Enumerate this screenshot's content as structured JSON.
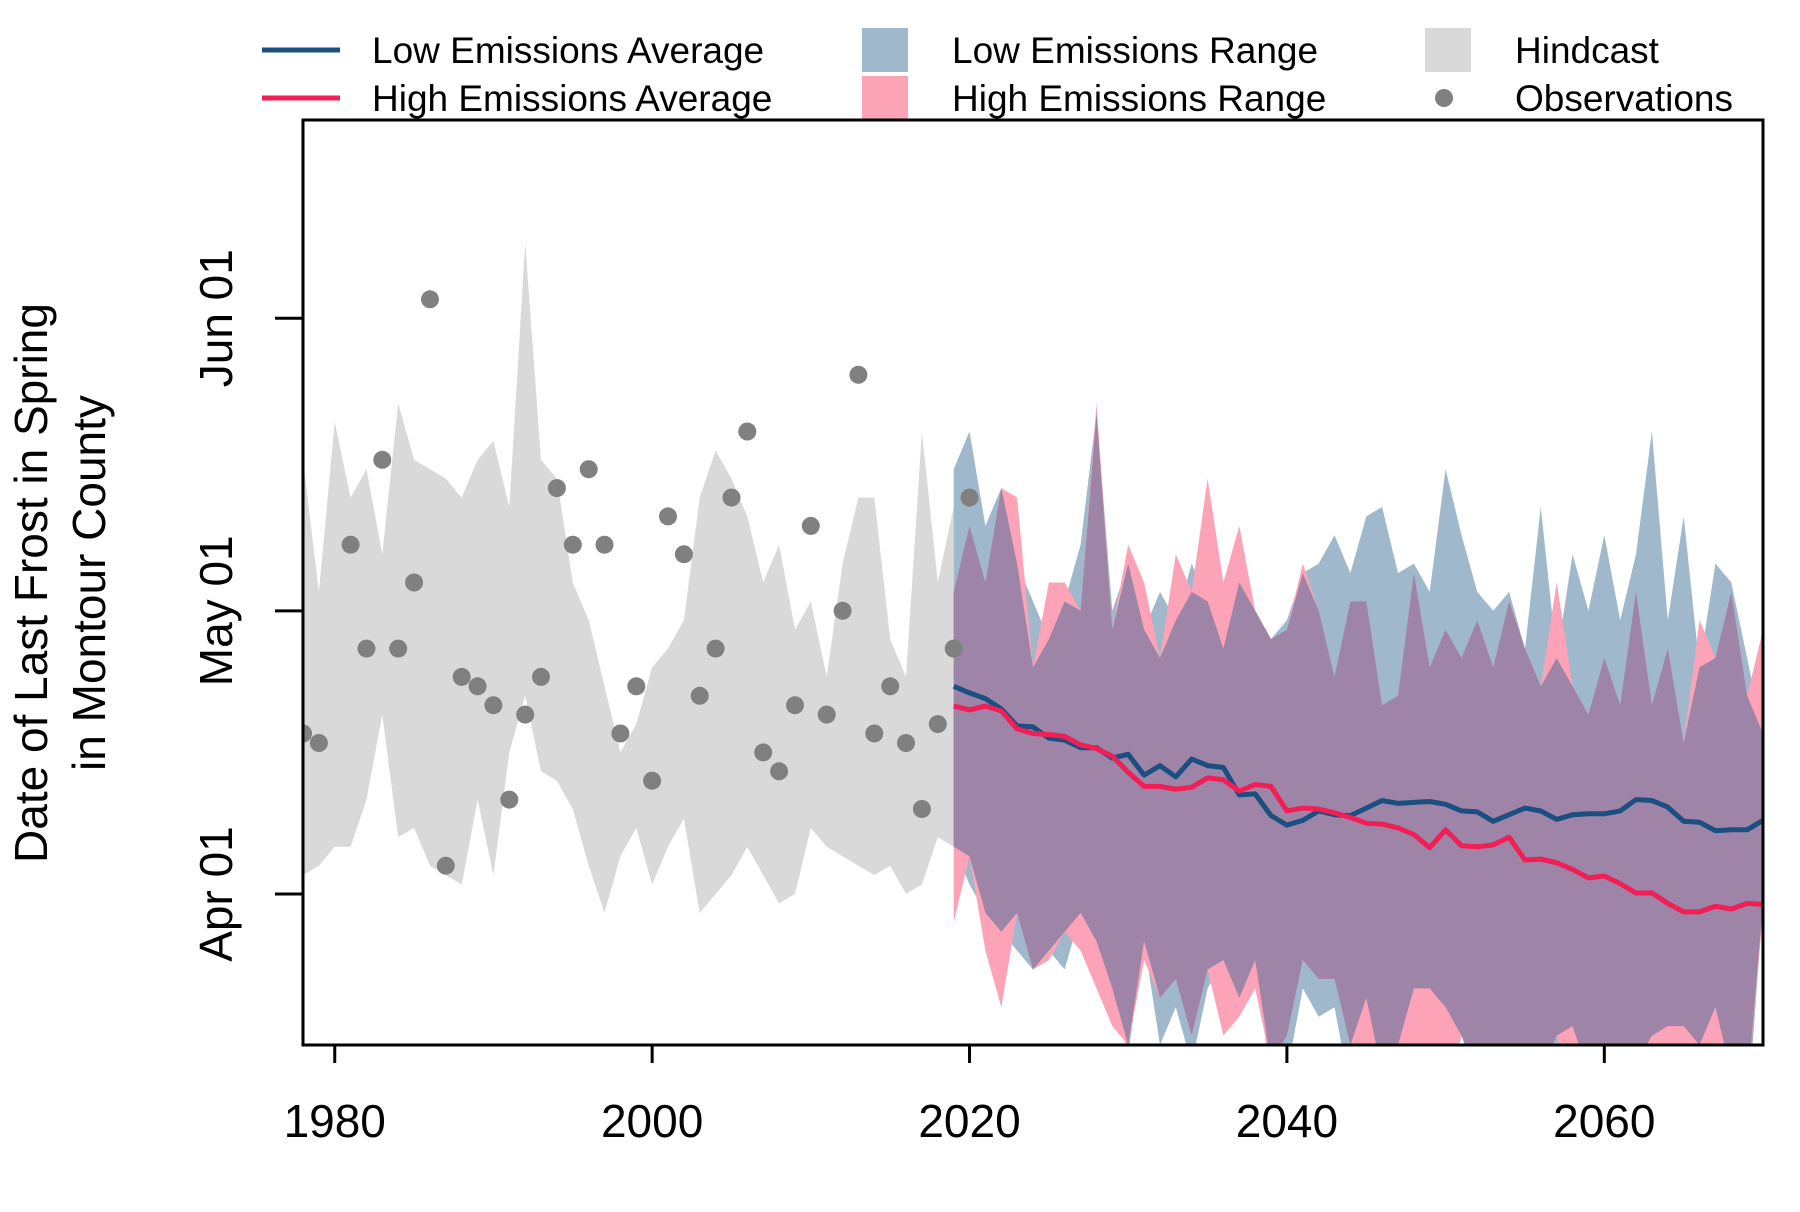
{
  "chart_data": {
    "type": "line",
    "ylabel_lines": [
      "Date of Last Frost in Spring",
      "in Montour County"
    ],
    "xlabel": "",
    "xlim": [
      1978,
      2070
    ],
    "ylim": [
      75,
      173
    ],
    "xticks": [
      1980,
      2000,
      2020,
      2040,
      2060
    ],
    "yticks": [
      {
        "value": 91,
        "label": "Apr 01"
      },
      {
        "value": 121,
        "label": "May 01"
      },
      {
        "value": 152,
        "label": "Jun 01"
      }
    ],
    "legend": {
      "placement": "top, outside plot, three columns",
      "entries": [
        {
          "key": "low_avg",
          "label": "Low Emissions Average",
          "kind": "line",
          "color": "#1b4e81"
        },
        {
          "key": "high_avg",
          "label": "High Emissions Average",
          "kind": "line",
          "color": "#f21e56"
        },
        {
          "key": "low_range",
          "label": "Low Emissions Range",
          "kind": "box",
          "color": "#9fb8cc"
        },
        {
          "key": "high_range",
          "label": "High Emissions Range",
          "kind": "box",
          "color": "#fca3b8"
        },
        {
          "key": "hindcast",
          "label": "Hindcast",
          "kind": "box",
          "color": "#d9d9d9"
        },
        {
          "key": "obs",
          "label": "Observations",
          "kind": "point",
          "color": "#808080"
        }
      ]
    },
    "colors": {
      "low_avg": "#1b4e81",
      "high_avg": "#f21e56",
      "low_range": "#9fb8cc",
      "high_range": "#fca3b8",
      "overlap": "#9e84a6",
      "hindcast": "#d9d9d9",
      "observations": "#808080"
    },
    "hindcast": {
      "x": [
        1978,
        1979,
        1980,
        1981,
        1982,
        1983,
        1984,
        1985,
        1986,
        1987,
        1988,
        1989,
        1990,
        1991,
        1992,
        1993,
        1994,
        1995,
        1996,
        1997,
        1998,
        1999,
        2000,
        2001,
        2002,
        2003,
        2004,
        2005,
        2006,
        2007,
        2008,
        2009,
        2010,
        2011,
        2012,
        2013,
        2014,
        2015,
        2016,
        2017,
        2018,
        2019
      ],
      "upper": [
        137,
        123,
        141,
        133,
        136,
        127,
        143,
        137,
        136,
        135,
        133,
        137,
        139,
        132,
        160,
        137,
        135,
        124,
        120,
        113,
        106,
        109,
        115,
        117,
        120,
        133,
        138,
        135,
        131,
        124,
        128,
        119,
        122,
        114,
        126,
        133,
        133,
        118,
        114,
        140,
        124,
        132
      ],
      "lower": [
        93,
        94,
        96,
        96,
        101,
        110,
        97,
        98,
        94,
        93,
        92,
        101,
        93,
        106,
        112,
        104,
        103,
        100,
        94,
        89,
        95,
        98,
        92,
        96,
        99,
        89,
        91,
        93,
        96,
        93,
        90,
        91,
        98,
        96,
        95,
        94,
        93,
        94,
        91,
        92,
        97,
        96
      ]
    },
    "low_range": {
      "x": [
        2019,
        2020,
        2021,
        2022,
        2023,
        2024,
        2025,
        2026,
        2027,
        2028,
        2029,
        2030,
        2031,
        2032,
        2033,
        2034,
        2035,
        2036,
        2037,
        2038,
        2039,
        2040,
        2041,
        2042,
        2043,
        2044,
        2045,
        2046,
        2047,
        2048,
        2049,
        2050,
        2051,
        2052,
        2053,
        2054,
        2055,
        2056,
        2057,
        2058,
        2059,
        2060,
        2061,
        2062,
        2063,
        2064,
        2065,
        2066,
        2067,
        2068,
        2069,
        2070
      ],
      "upper": [
        136,
        140,
        130,
        134,
        126,
        122,
        118,
        122,
        128,
        142,
        121,
        126,
        119,
        123,
        120,
        126,
        122,
        117,
        124,
        121,
        118,
        120,
        125,
        126,
        129,
        125,
        131,
        132,
        125,
        126,
        123,
        136,
        129,
        123,
        121,
        123,
        117,
        132,
        116,
        127,
        121,
        129,
        120,
        127,
        140,
        120,
        131,
        115,
        126,
        124,
        116,
        108
      ],
      "lower": [
        96,
        92,
        89,
        87,
        85,
        83,
        85,
        83,
        89,
        86,
        81,
        74,
        86,
        75,
        79,
        73,
        81,
        84,
        80,
        84,
        71,
        72,
        81,
        78,
        79,
        70,
        80,
        71,
        75,
        81,
        81,
        79,
        76,
        71,
        72,
        73,
        72,
        67,
        71,
        77,
        71,
        74,
        69,
        71,
        76,
        77,
        77,
        75,
        79,
        72,
        67,
        90
      ]
    },
    "high_range": {
      "x": [
        2019,
        2020,
        2021,
        2022,
        2023,
        2024,
        2025,
        2026,
        2027,
        2028,
        2029,
        2030,
        2031,
        2032,
        2033,
        2034,
        2035,
        2036,
        2037,
        2038,
        2039,
        2040,
        2041,
        2042,
        2043,
        2044,
        2045,
        2046,
        2047,
        2048,
        2049,
        2050,
        2051,
        2052,
        2053,
        2054,
        2055,
        2056,
        2057,
        2058,
        2059,
        2060,
        2061,
        2062,
        2063,
        2064,
        2065,
        2066,
        2067,
        2068,
        2069,
        2070
      ],
      "upper": [
        123,
        130,
        124,
        134,
        133,
        115,
        124,
        124,
        121,
        143,
        119,
        128,
        124,
        116,
        127,
        123,
        135,
        124,
        130,
        121,
        118,
        119,
        126,
        121,
        114,
        122,
        122,
        111,
        112,
        125,
        115,
        119,
        116,
        120,
        115,
        122,
        117,
        113,
        124,
        113,
        110,
        116,
        111,
        123,
        111,
        117,
        107,
        120,
        116,
        123,
        112,
        119
      ],
      "lower": [
        88,
        95,
        85,
        79,
        89,
        83,
        84,
        87,
        85,
        81,
        77,
        75,
        84,
        80,
        82,
        76,
        83,
        76,
        78,
        81,
        73,
        76,
        84,
        82,
        82,
        75,
        69,
        72,
        72,
        70,
        74,
        69,
        76,
        72,
        73,
        75,
        71,
        72,
        76,
        69,
        72,
        69,
        75,
        73,
        72,
        68,
        68,
        64,
        68,
        66,
        70,
        89
      ]
    },
    "low_avg": {
      "x": [
        2019,
        2020,
        2021,
        2022,
        2023,
        2024,
        2025,
        2026,
        2027,
        2028,
        2029,
        2030,
        2031,
        2032,
        2033,
        2034,
        2035,
        2036,
        2037,
        2038,
        2039,
        2040,
        2041,
        2042,
        2043,
        2044,
        2045,
        2046,
        2047,
        2048,
        2049,
        2050,
        2051,
        2052,
        2053,
        2054,
        2055,
        2056,
        2057,
        2058,
        2059,
        2060,
        2061,
        2062,
        2063,
        2064,
        2065,
        2066,
        2067,
        2068,
        2069,
        2070
      ],
      "values": [
        113,
        112.3,
        111.7,
        110.6,
        108.8,
        108.7,
        107.5,
        107.3,
        106.5,
        106.5,
        105.4,
        105.8,
        103.6,
        104.6,
        103.4,
        105.3,
        104.6,
        104.4,
        101.5,
        101.6,
        99.3,
        98.3,
        98.8,
        99.8,
        99.4,
        99.3,
        100.1,
        100.9,
        100.6,
        100.7,
        100.8,
        100.5,
        99.8,
        99.7,
        98.7,
        99.4,
        100.1,
        99.8,
        98.9,
        99.4,
        99.5,
        99.5,
        99.8,
        101.0,
        100.9,
        100.2,
        98.7,
        98.6,
        97.7,
        97.8,
        97.8,
        98.8
      ]
    },
    "high_avg": {
      "x": [
        2019,
        2020,
        2021,
        2022,
        2023,
        2024,
        2025,
        2026,
        2027,
        2028,
        2029,
        2030,
        2031,
        2032,
        2033,
        2034,
        2035,
        2036,
        2037,
        2038,
        2039,
        2040,
        2041,
        2042,
        2043,
        2044,
        2045,
        2046,
        2047,
        2048,
        2049,
        2050,
        2051,
        2052,
        2053,
        2054,
        2055,
        2056,
        2057,
        2058,
        2059,
        2060,
        2061,
        2062,
        2063,
        2064,
        2065,
        2066,
        2067,
        2068,
        2069,
        2070
      ],
      "values": [
        110.9,
        110.5,
        110.9,
        110.4,
        108.5,
        108.0,
        107.9,
        107.7,
        106.8,
        106.4,
        105.6,
        103.9,
        102.4,
        102.4,
        102.1,
        102.3,
        103.3,
        103.1,
        101.9,
        102.6,
        102.4,
        99.8,
        100.1,
        100.0,
        99.6,
        99.1,
        98.5,
        98.4,
        98.0,
        97.3,
        95.9,
        97.8,
        96.1,
        96.0,
        96.2,
        97.0,
        94.6,
        94.7,
        94.3,
        93.6,
        92.7,
        92.9,
        92.1,
        91.1,
        91.1,
        90.0,
        89.1,
        89.1,
        89.7,
        89.4,
        90.0,
        89.9
      ]
    },
    "observations": {
      "x": [
        1978,
        1979,
        1981,
        1982,
        1984,
        1985,
        1983,
        1986,
        1987,
        1988,
        1989,
        1990,
        1991,
        1992,
        1993,
        1994,
        1995,
        1996,
        1997,
        1998,
        1999,
        2000,
        2001,
        2002,
        2003,
        2004,
        2005,
        2006,
        2007,
        2008,
        2009,
        2010,
        2011,
        2012,
        2013,
        2014,
        2015,
        2016,
        2017,
        2018,
        2019,
        2020
      ],
      "values": [
        108,
        107,
        128,
        117,
        117,
        124,
        137,
        154,
        94,
        114,
        113,
        111,
        101,
        110,
        114,
        134,
        128,
        136,
        128,
        108,
        113,
        103,
        131,
        127,
        112,
        117,
        133,
        140,
        106,
        104,
        111,
        130,
        110,
        121,
        146,
        108,
        113,
        107,
        100,
        109,
        117,
        133
      ]
    }
  }
}
